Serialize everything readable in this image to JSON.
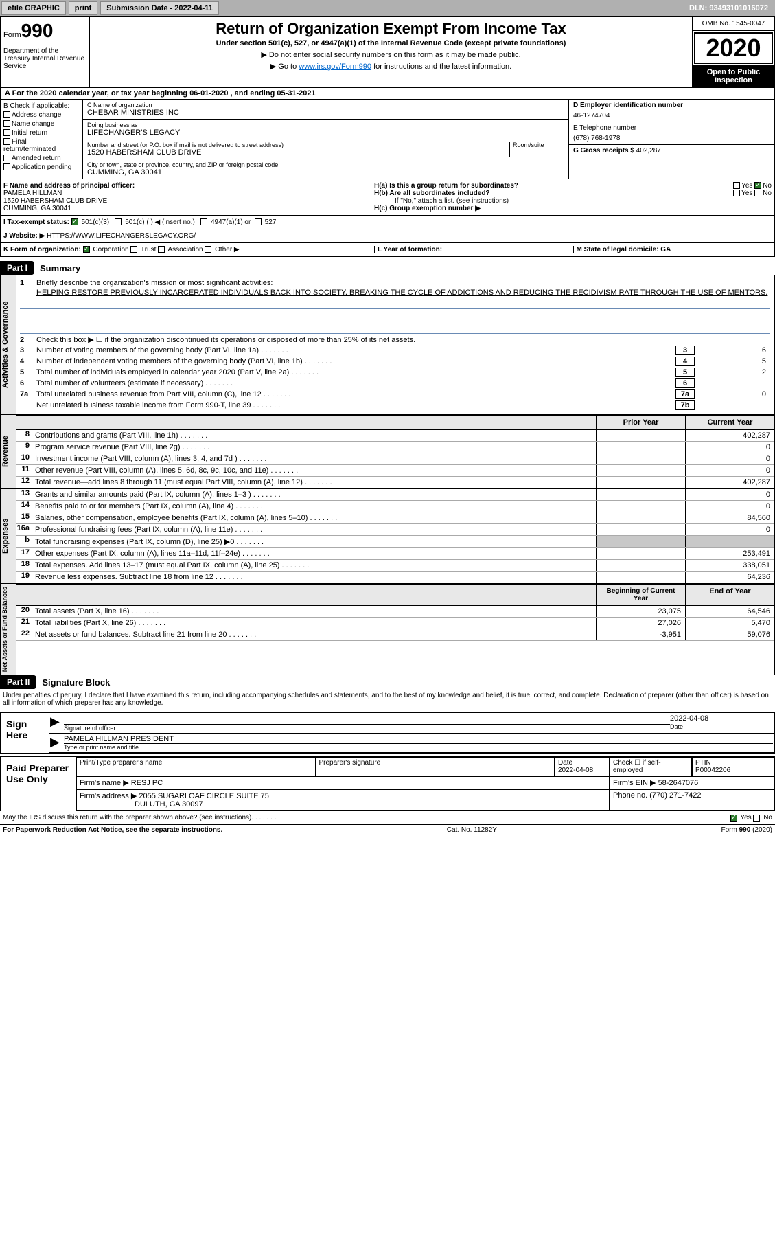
{
  "topbar": {
    "efile": "efile GRAPHIC",
    "print": "print",
    "submission_label": "Submission Date - 2022-04-11",
    "dln": "DLN: 93493101016072"
  },
  "header": {
    "form_label": "Form",
    "form_number": "990",
    "dept": "Department of the Treasury Internal Revenue Service",
    "title": "Return of Organization Exempt From Income Tax",
    "subtitle": "Under section 501(c), 527, or 4947(a)(1) of the Internal Revenue Code (except private foundations)",
    "note1": "▶ Do not enter social security numbers on this form as it may be made public.",
    "note2_pre": "▶ Go to ",
    "note2_link": "www.irs.gov/Form990",
    "note2_post": " for instructions and the latest information.",
    "omb": "OMB No. 1545-0047",
    "year": "2020",
    "inspection": "Open to Public Inspection"
  },
  "period": "A For the 2020 calendar year, or tax year beginning 06-01-2020    , and ending 05-31-2021",
  "sectionB": {
    "label": "B Check if applicable:",
    "items": [
      "Address change",
      "Name change",
      "Initial return",
      "Final return/terminated",
      "Amended return",
      "Application pending"
    ]
  },
  "sectionC": {
    "name_label": "C Name of organization",
    "name": "CHEBAR MINISTRIES INC",
    "dba_label": "Doing business as",
    "dba": "LIFECHANGER'S LEGACY",
    "addr_label": "Number and street (or P.O. box if mail is not delivered to street address)",
    "room_label": "Room/suite",
    "addr": "1520 HABERSHAM CLUB DRIVE",
    "city_label": "City or town, state or province, country, and ZIP or foreign postal code",
    "city": "CUMMING, GA  30041"
  },
  "sectionD": {
    "ein_label": "D Employer identification number",
    "ein": "46-1274704",
    "phone_label": "E Telephone number",
    "phone": "(678) 768-1978",
    "gross_label": "G Gross receipts $",
    "gross": "402,287"
  },
  "sectionF": {
    "label": "F  Name and address of principal officer:",
    "name": "PAMELA HILLMAN",
    "addr1": "1520 HABERSHAM CLUB DRIVE",
    "addr2": "CUMMING, GA  30041"
  },
  "sectionH": {
    "ha": "H(a)  Is this a group return for subordinates?",
    "hb": "H(b)  Are all subordinates included?",
    "hb_note": "If \"No,\" attach a list. (see instructions)",
    "hc": "H(c)  Group exemption number ▶",
    "yes": "Yes",
    "no": "No"
  },
  "taxStatus": {
    "label": "I  Tax-exempt status:",
    "opt1": "501(c)(3)",
    "opt2": "501(c) (    ) ◀  (insert no.)",
    "opt3": "4947(a)(1) or",
    "opt4": "527"
  },
  "sectionJ": {
    "label": "J   Website: ▶",
    "value": "HTTPS://WWW.LIFECHANGERSLEGACY.ORG/"
  },
  "sectionK": {
    "label": "K Form of organization:",
    "opts": [
      "Corporation",
      "Trust",
      "Association",
      "Other ▶"
    ]
  },
  "sectionL": {
    "label_l": "L Year of formation:",
    "label_m": "M State of legal domicile: GA"
  },
  "part1": {
    "label": "Part I",
    "title": "Summary",
    "side1": "Activities & Governance",
    "side2": "Revenue",
    "side3": "Expenses",
    "side4": "Net Assets or Fund Balances",
    "line1": "Briefly describe the organization's mission or most significant activities:",
    "mission": "HELPING RESTORE PREVIOUSLY INCARCERATED INDIVIDUALS BACK INTO SOCIETY, BREAKING THE CYCLE OF ADDICTIONS AND REDUCING THE RECIDIVISM RATE THROUGH THE USE OF MENTORS.",
    "line2": "Check this box ▶ ☐  if the organization discontinued its operations or disposed of more than 25% of its net assets.",
    "lines_gov": [
      {
        "n": "3",
        "t": "Number of voting members of the governing body (Part VI, line 1a)",
        "b": "3",
        "v": "6"
      },
      {
        "n": "4",
        "t": "Number of independent voting members of the governing body (Part VI, line 1b)",
        "b": "4",
        "v": "5"
      },
      {
        "n": "5",
        "t": "Total number of individuals employed in calendar year 2020 (Part V, line 2a)",
        "b": "5",
        "v": "2"
      },
      {
        "n": "6",
        "t": "Total number of volunteers (estimate if necessary)",
        "b": "6",
        "v": ""
      },
      {
        "n": "7a",
        "t": "Total unrelated business revenue from Part VIII, column (C), line 12",
        "b": "7a",
        "v": "0"
      },
      {
        "n": "",
        "t": "Net unrelated business taxable income from Form 990-T, line 39",
        "b": "7b",
        "v": ""
      }
    ],
    "th_prior": "Prior Year",
    "th_current": "Current Year",
    "lines_rev": [
      {
        "n": "8",
        "t": "Contributions and grants (Part VIII, line 1h)",
        "p": "",
        "c": "402,287"
      },
      {
        "n": "9",
        "t": "Program service revenue (Part VIII, line 2g)",
        "p": "",
        "c": "0"
      },
      {
        "n": "10",
        "t": "Investment income (Part VIII, column (A), lines 3, 4, and 7d )",
        "p": "",
        "c": "0"
      },
      {
        "n": "11",
        "t": "Other revenue (Part VIII, column (A), lines 5, 6d, 8c, 9c, 10c, and 11e)",
        "p": "",
        "c": "0"
      },
      {
        "n": "12",
        "t": "Total revenue—add lines 8 through 11 (must equal Part VIII, column (A), line 12)",
        "p": "",
        "c": "402,287"
      }
    ],
    "lines_exp": [
      {
        "n": "13",
        "t": "Grants and similar amounts paid (Part IX, column (A), lines 1–3 )",
        "p": "",
        "c": "0"
      },
      {
        "n": "14",
        "t": "Benefits paid to or for members (Part IX, column (A), line 4)",
        "p": "",
        "c": "0"
      },
      {
        "n": "15",
        "t": "Salaries, other compensation, employee benefits (Part IX, column (A), lines 5–10)",
        "p": "",
        "c": "84,560"
      },
      {
        "n": "16a",
        "t": "Professional fundraising fees (Part IX, column (A), line 11e)",
        "p": "",
        "c": "0"
      },
      {
        "n": "b",
        "t": "Total fundraising expenses (Part IX, column (D), line 25) ▶0",
        "p": "shaded",
        "c": "shaded"
      },
      {
        "n": "17",
        "t": "Other expenses (Part IX, column (A), lines 11a–11d, 11f–24e)",
        "p": "",
        "c": "253,491"
      },
      {
        "n": "18",
        "t": "Total expenses. Add lines 13–17 (must equal Part IX, column (A), line 25)",
        "p": "",
        "c": "338,051"
      },
      {
        "n": "19",
        "t": "Revenue less expenses. Subtract line 18 from line 12",
        "p": "",
        "c": "64,236"
      }
    ],
    "th_begin": "Beginning of Current Year",
    "th_end": "End of Year",
    "lines_net": [
      {
        "n": "20",
        "t": "Total assets (Part X, line 16)",
        "p": "23,075",
        "c": "64,546"
      },
      {
        "n": "21",
        "t": "Total liabilities (Part X, line 26)",
        "p": "27,026",
        "c": "5,470"
      },
      {
        "n": "22",
        "t": "Net assets or fund balances. Subtract line 21 from line 20",
        "p": "-3,951",
        "c": "59,076"
      }
    ]
  },
  "part2": {
    "label": "Part II",
    "title": "Signature Block",
    "declaration": "Under penalties of perjury, I declare that I have examined this return, including accompanying schedules and statements, and to the best of my knowledge and belief, it is true, correct, and complete. Declaration of preparer (other than officer) is based on all information of which preparer has any knowledge.",
    "sign_here": "Sign Here",
    "sig_officer": "Signature of officer",
    "sig_date": "2022-04-08",
    "date_label": "Date",
    "officer_name": "PAMELA HILLMAN  PRESIDENT",
    "officer_label": "Type or print name and title",
    "paid_label": "Paid Preparer Use Only",
    "prep_name_label": "Print/Type preparer's name",
    "prep_sig_label": "Preparer's signature",
    "prep_date_label": "Date",
    "prep_date": "2022-04-08",
    "check_label": "Check ☐ if self-employed",
    "ptin_label": "PTIN",
    "ptin": "P00042206",
    "firm_name_label": "Firm's name    ▶",
    "firm_name": "RESJ PC",
    "firm_ein_label": "Firm's EIN ▶",
    "firm_ein": "58-2647076",
    "firm_addr_label": "Firm's address ▶",
    "firm_addr": "2055 SUGARLOAF CIRCLE SUITE 75",
    "firm_city": "DULUTH, GA  30097",
    "phone_label": "Phone no.",
    "phone": "(770) 271-7422",
    "discuss": "May the IRS discuss this return with the preparer shown above? (see instructions)",
    "yes": "Yes",
    "no": "No"
  },
  "footer": {
    "paperwork": "For Paperwork Reduction Act Notice, see the separate instructions.",
    "cat": "Cat. No. 11282Y",
    "form": "Form 990 (2020)"
  }
}
